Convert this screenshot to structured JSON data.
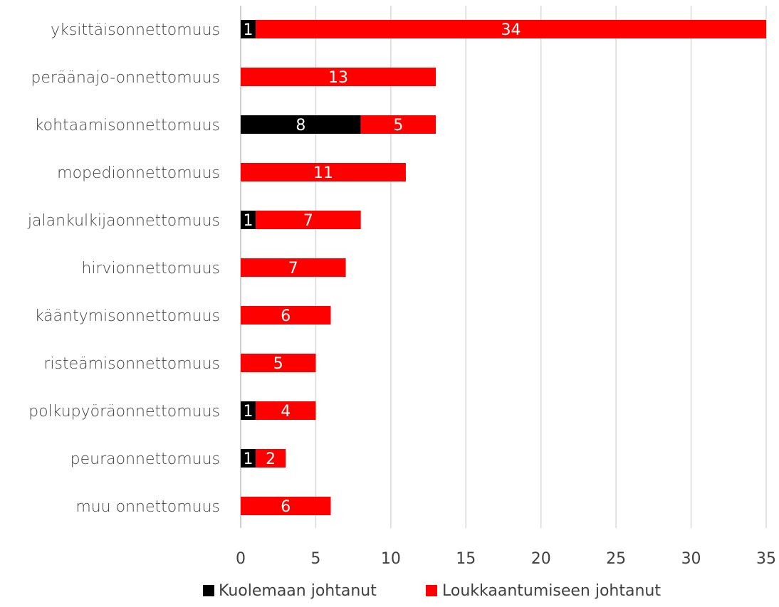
{
  "chart_data": {
    "type": "bar",
    "orientation": "horizontal",
    "stacked": true,
    "categories": [
      "yksittäisonnettomuus",
      "peräänajo-onnettomuus",
      "kohtaamisonnettomuus",
      "mopedionnettomuus",
      "jalankulkijaonnettomuus",
      "hirvionnettomuus",
      "kääntymisonnettomuus",
      "risteämisonnettomuus",
      "polkupyöräonnettomuus",
      "peuraonnettomuus",
      "muu onnettomuus"
    ],
    "series": [
      {
        "name": "Kuolemaan johtanut",
        "color": "#000000",
        "values": [
          1,
          0,
          8,
          0,
          1,
          0,
          0,
          0,
          1,
          1,
          0
        ]
      },
      {
        "name": "Loukkaantumiseen johtanut",
        "color": "#ff0000",
        "values": [
          34,
          13,
          5,
          11,
          7,
          7,
          6,
          5,
          4,
          2,
          6
        ]
      }
    ],
    "xlim": [
      0,
      35
    ],
    "xticks": [
      0,
      5,
      10,
      15,
      20,
      25,
      30,
      35
    ],
    "grid": true,
    "legend_position": "bottom",
    "title": "",
    "xlabel": "",
    "ylabel": ""
  }
}
